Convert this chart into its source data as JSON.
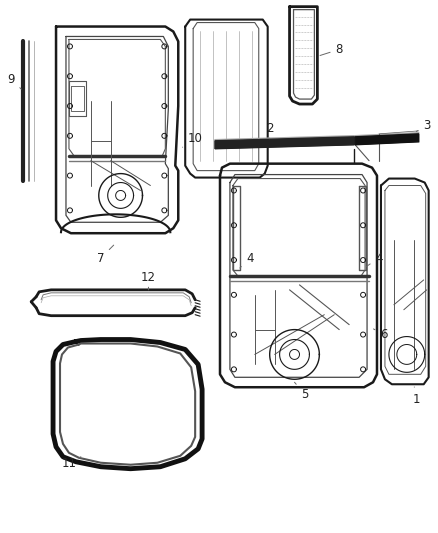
{
  "background_color": "#ffffff",
  "line_color": "#1a1a1a",
  "label_color": "#222222",
  "label_fontsize": 8.5,
  "leader_line_color": "#666666",
  "figsize": [
    4.38,
    5.33
  ],
  "dpi": 100
}
